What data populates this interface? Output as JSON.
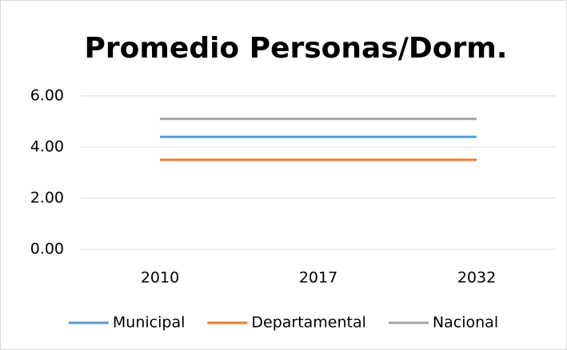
{
  "chart_data": {
    "type": "line",
    "title": "Promedio Personas/Dorm.",
    "categories": [
      "2010",
      "2017",
      "2032"
    ],
    "series": [
      {
        "name": "Municipal",
        "color": "#5b9bd5",
        "values": [
          4.4,
          4.4,
          4.4
        ]
      },
      {
        "name": "Departamental",
        "color": "#ed7d31",
        "values": [
          3.5,
          3.5,
          3.5
        ]
      },
      {
        "name": "Nacional",
        "color": "#a5a5a5",
        "values": [
          5.1,
          5.1,
          5.1
        ]
      }
    ],
    "ylim": [
      0,
      6
    ],
    "yticks": [
      {
        "value": 0,
        "label": "0.00"
      },
      {
        "value": 2,
        "label": "2.00"
      },
      {
        "value": 4,
        "label": "4.00"
      },
      {
        "value": 6,
        "label": "6.00"
      }
    ],
    "grid": true,
    "legend": "bottom"
  }
}
